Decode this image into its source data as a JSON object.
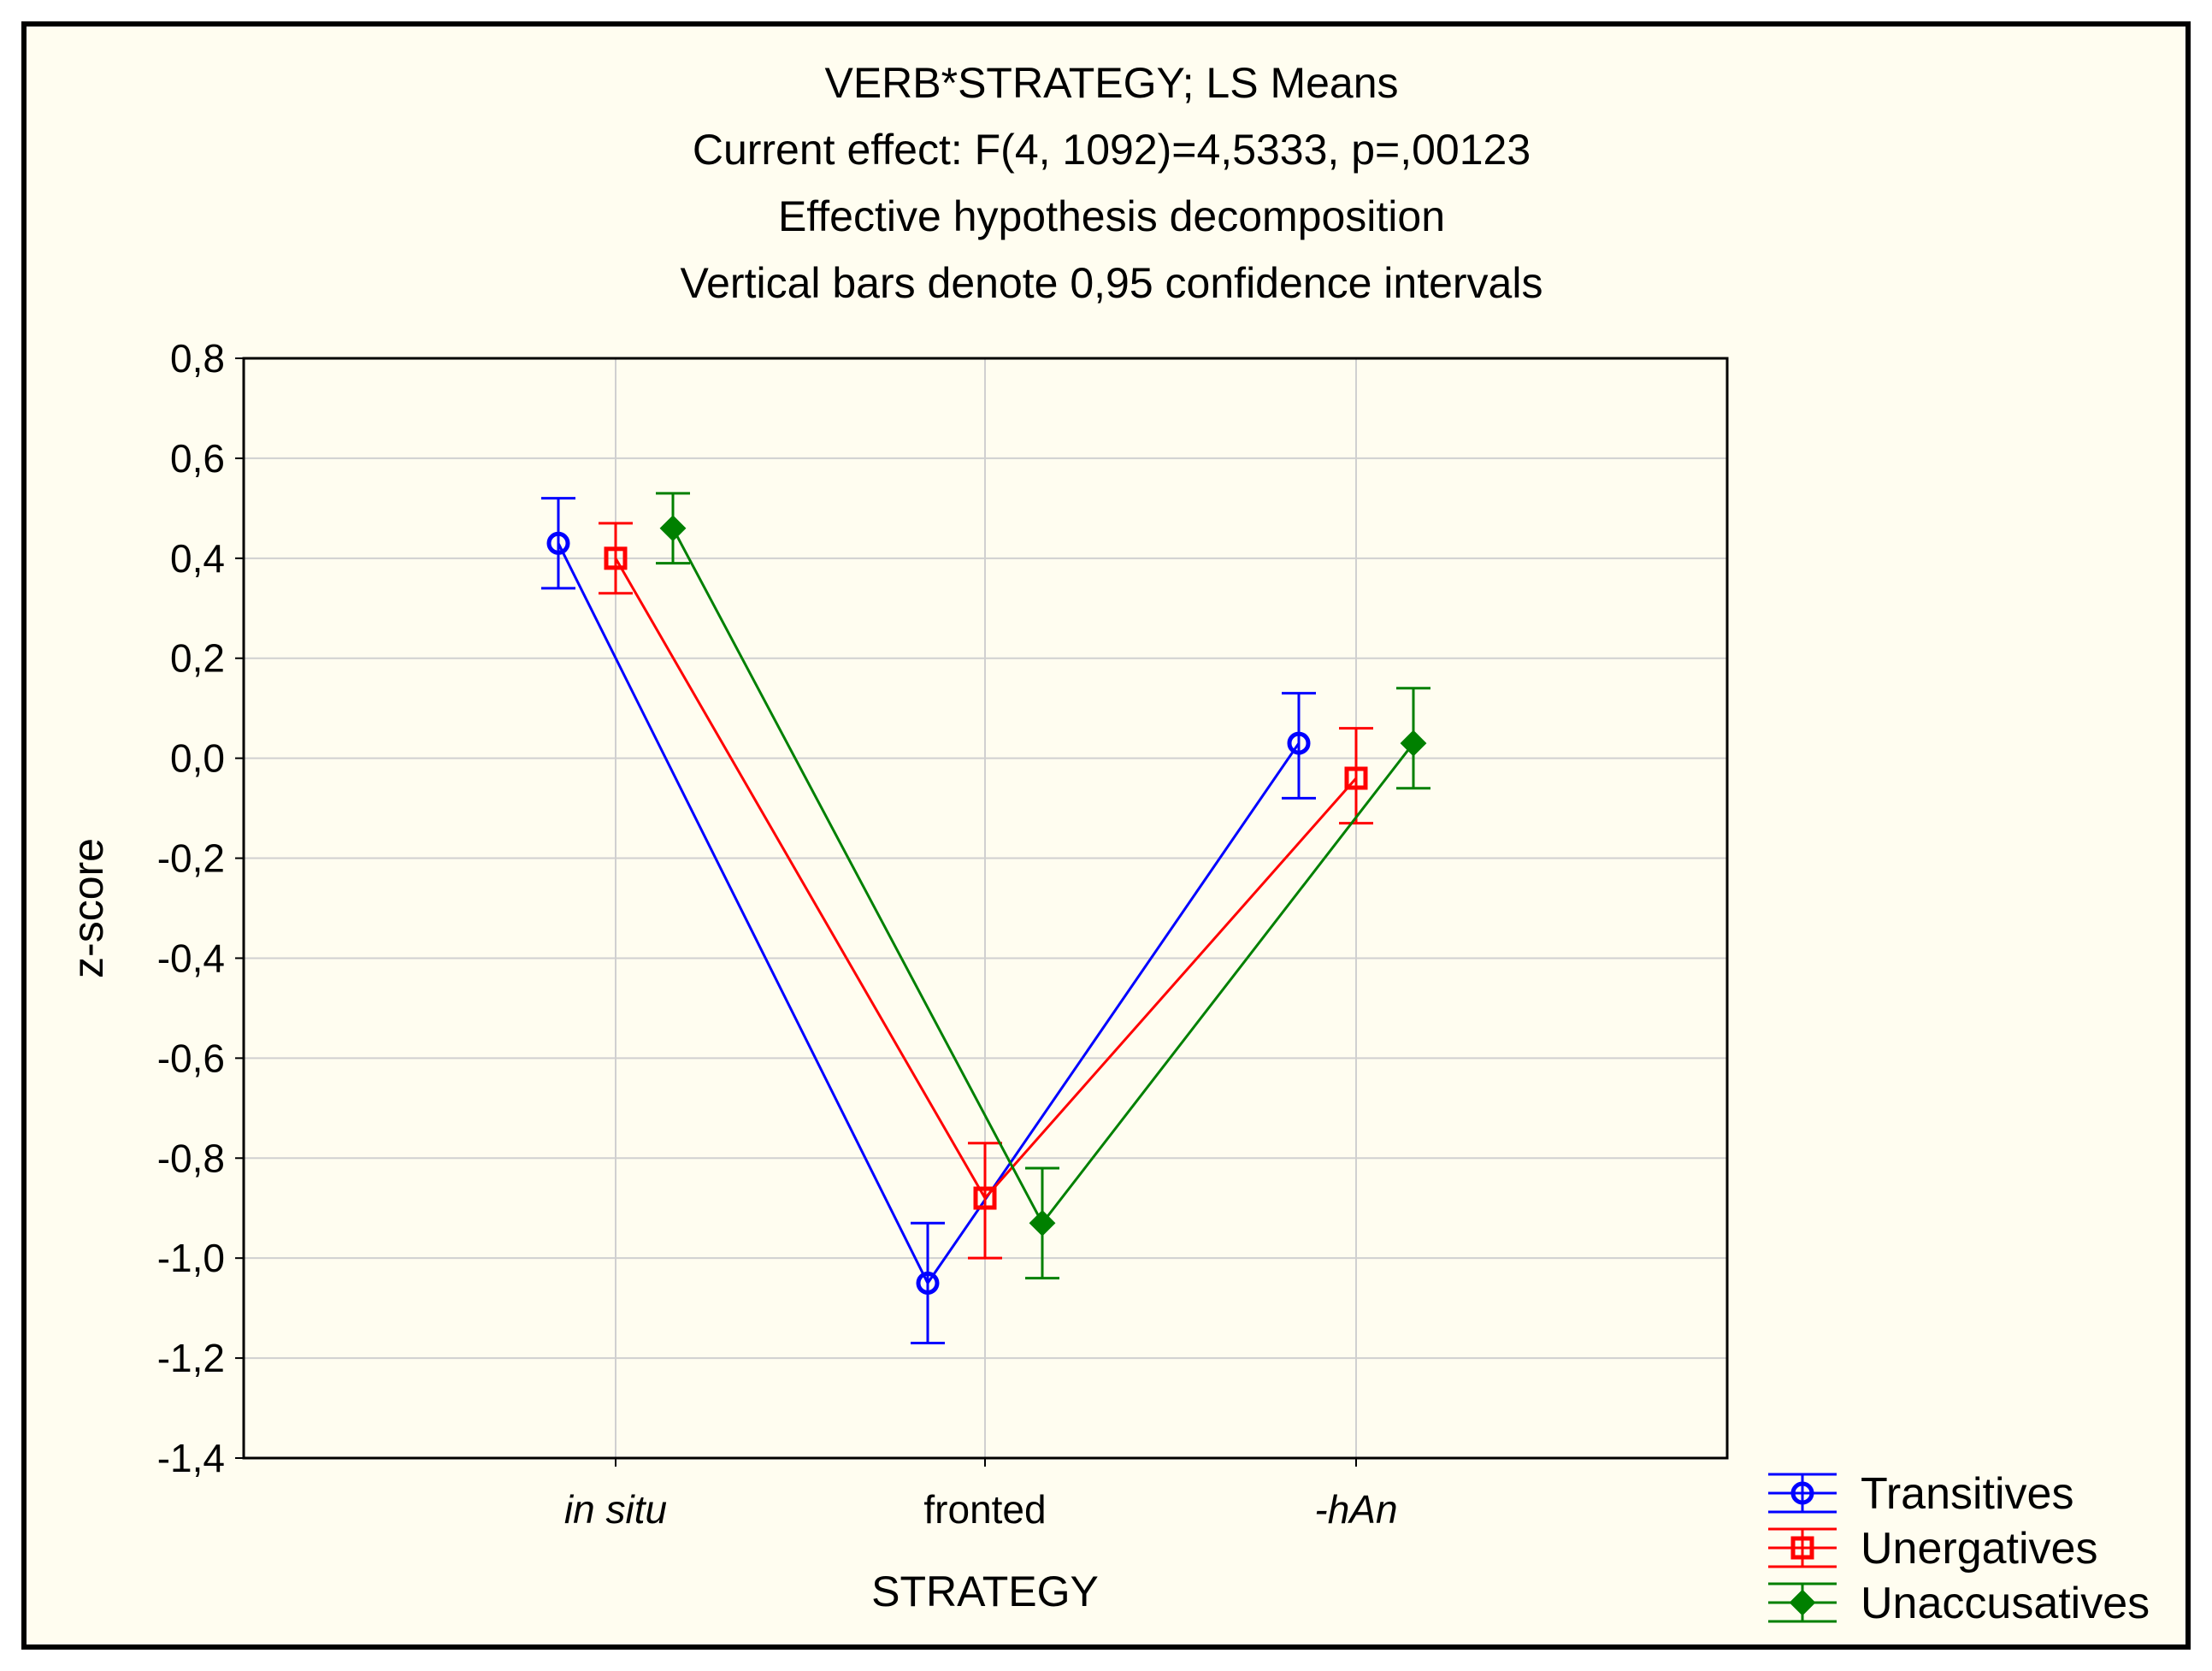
{
  "chart_data": {
    "type": "line",
    "title_lines": [
      "VERB*STRATEGY; LS Means",
      "Current effect: F(4, 1092)=4,5333, p=,00123",
      "Effective hypothesis decomposition",
      "Vertical bars denote 0,95 confidence intervals"
    ],
    "xlabel": "STRATEGY",
    "ylabel": "z-score",
    "categories": [
      "in situ",
      "fronted",
      "-hAn"
    ],
    "category_italic": [
      true,
      false,
      true
    ],
    "ylim": [
      -1.4,
      0.8
    ],
    "yticks": [
      0.8,
      0.6,
      0.4,
      0.2,
      0.0,
      -0.2,
      -0.4,
      -0.6,
      -0.8,
      -1.0,
      -1.2,
      -1.4
    ],
    "ytick_labels": [
      "0,8",
      "0,6",
      "0,4",
      "0,2",
      "0,0",
      "-0,2",
      "-0,4",
      "-0,6",
      "-0,8",
      "-1,0",
      "-1,2",
      "-1,4"
    ],
    "grid": true,
    "legend_position": "bottom-right outside",
    "series": [
      {
        "name": "Transitives",
        "color": "#0000ff",
        "marker": "circle",
        "offset": -1,
        "values": [
          0.43,
          -1.05,
          0.03
        ],
        "ci_low": [
          0.34,
          -1.17,
          -0.08
        ],
        "ci_high": [
          0.52,
          -0.93,
          0.13
        ]
      },
      {
        "name": "Unergatives",
        "color": "#ff0000",
        "marker": "square",
        "offset": 0,
        "values": [
          0.4,
          -0.88,
          -0.04
        ],
        "ci_low": [
          0.33,
          -1.0,
          -0.13
        ],
        "ci_high": [
          0.47,
          -0.77,
          0.06
        ]
      },
      {
        "name": "Unaccusatives",
        "color": "#008000",
        "marker": "diamond",
        "offset": 1,
        "values": [
          0.46,
          -0.93,
          0.03
        ],
        "ci_low": [
          0.39,
          -1.04,
          -0.06
        ],
        "ci_high": [
          0.53,
          -0.82,
          0.14
        ]
      }
    ]
  }
}
